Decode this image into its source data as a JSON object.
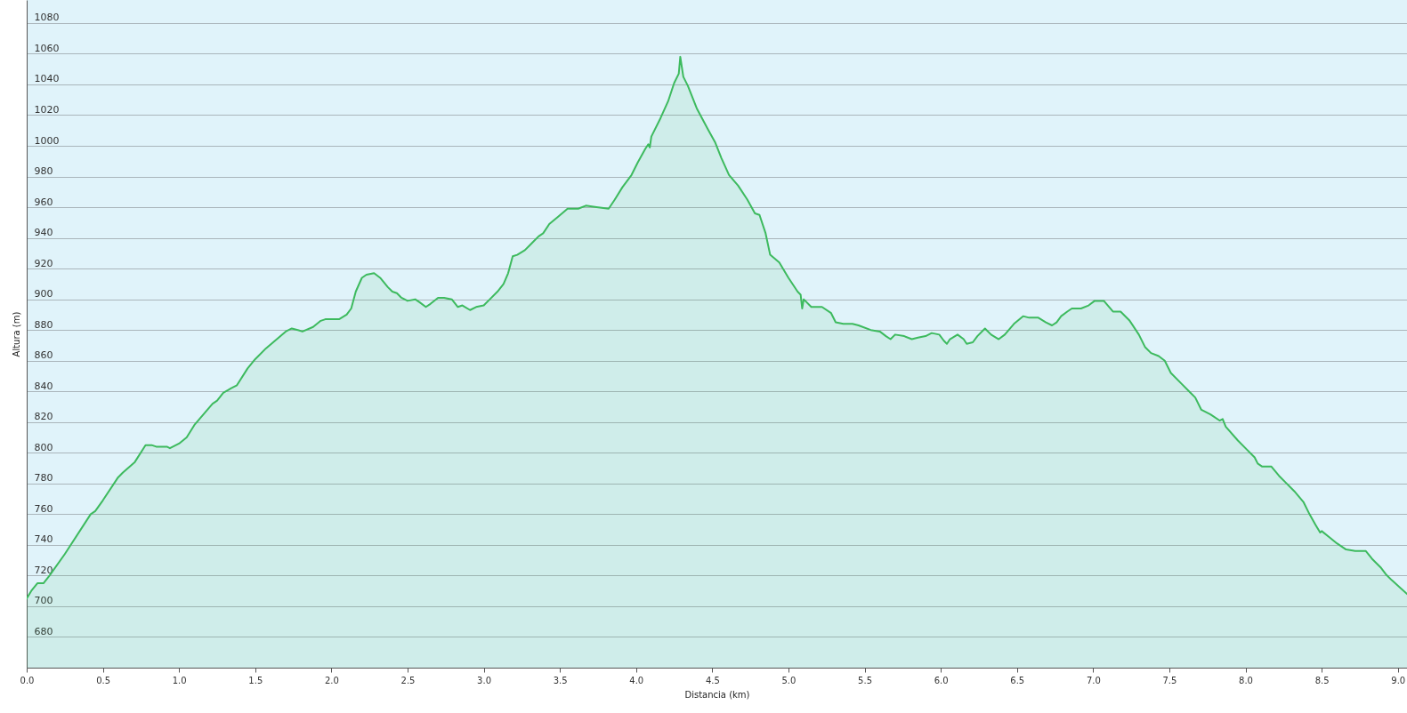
{
  "chart_data": {
    "type": "area",
    "xlabel": "Distancia  (km)",
    "ylabel": "Altura (m)",
    "x": [
      0,
      0.03,
      0.07,
      0.11,
      0.15,
      0.25,
      0.42,
      0.45,
      0.5,
      0.6,
      0.63,
      0.71,
      0.78,
      0.82,
      0.85,
      0.92,
      0.94,
      1.0,
      1.05,
      1.1,
      1.16,
      1.22,
      1.25,
      1.29,
      1.34,
      1.38,
      1.45,
      1.5,
      1.57,
      1.7,
      1.74,
      1.78,
      1.81,
      1.88,
      1.93,
      1.96,
      2.05,
      2.1,
      2.13,
      2.16,
      2.2,
      2.23,
      2.28,
      2.32,
      2.37,
      2.4,
      2.43,
      2.46,
      2.5,
      2.55,
      2.58,
      2.62,
      2.65,
      2.7,
      2.74,
      2.79,
      2.83,
      2.86,
      2.91,
      2.95,
      3.0,
      3.04,
      3.09,
      3.13,
      3.16,
      3.19,
      3.22,
      3.27,
      3.3,
      3.33,
      3.36,
      3.39,
      3.43,
      3.49,
      3.55,
      3.62,
      3.67,
      3.74,
      3.82,
      3.86,
      3.91,
      3.97,
      4.01,
      4.06,
      4.08,
      4.09,
      4.1,
      4.16,
      4.21,
      4.25,
      4.28,
      4.29,
      4.31,
      4.34,
      4.4,
      4.47,
      4.52,
      4.56,
      4.61,
      4.67,
      4.73,
      4.78,
      4.81,
      4.85,
      4.88,
      4.94,
      5.0,
      5.06,
      5.08,
      5.09,
      5.1,
      5.15,
      5.22,
      5.28,
      5.31,
      5.36,
      5.42,
      5.46,
      5.54,
      5.6,
      5.64,
      5.67,
      5.7,
      5.76,
      5.81,
      5.85,
      5.9,
      5.94,
      5.99,
      6.02,
      6.04,
      6.06,
      6.11,
      6.15,
      6.17,
      6.21,
      6.24,
      6.29,
      6.33,
      6.38,
      6.42,
      6.48,
      6.54,
      6.58,
      6.64,
      6.69,
      6.73,
      6.76,
      6.79,
      6.83,
      6.86,
      6.92,
      6.97,
      7.01,
      7.07,
      7.13,
      7.18,
      7.24,
      7.3,
      7.34,
      7.38,
      7.43,
      7.47,
      7.51,
      7.58,
      7.64,
      7.67,
      7.71,
      7.77,
      7.83,
      7.85,
      7.87,
      7.95,
      8.01,
      8.06,
      8.08,
      8.11,
      8.17,
      8.22,
      8.26,
      8.32,
      8.38,
      8.42,
      8.46,
      8.49,
      8.5,
      8.55,
      8.6,
      8.66,
      8.72,
      8.79,
      8.83,
      8.89,
      8.92,
      8.96,
      9.06
    ],
    "series": [
      {
        "color": "#3dba5e",
        "values": [
          705,
          710,
          715,
          715,
          720,
          734,
          760,
          762,
          769,
          784,
          787,
          794,
          805,
          805,
          804,
          804,
          803,
          806,
          810,
          818,
          825,
          832,
          834,
          839,
          842,
          844,
          855,
          861,
          868,
          879,
          881,
          880,
          879,
          882,
          886,
          887,
          887,
          890,
          894,
          905,
          914,
          916,
          917,
          914,
          908,
          905,
          904,
          901,
          899,
          900,
          898,
          895,
          897,
          901,
          901,
          900,
          895,
          896,
          893,
          895,
          896,
          900,
          905,
          910,
          917,
          928,
          929,
          932,
          935,
          938,
          941,
          943,
          949,
          954,
          959,
          959,
          961,
          960,
          959,
          965,
          973,
          981,
          989,
          998,
          1001,
          999,
          1006,
          1018,
          1029,
          1041,
          1047,
          1058,
          1045,
          1039,
          1024,
          1011,
          1002,
          992,
          981,
          974,
          965,
          956,
          955,
          943,
          929,
          924,
          914,
          905,
          903,
          894,
          900,
          895,
          895,
          891,
          885,
          884,
          884,
          883,
          880,
          879,
          876,
          874,
          877,
          876,
          874,
          875,
          876,
          878,
          877,
          873,
          871,
          874,
          877,
          874,
          871,
          872,
          876,
          881,
          877,
          874,
          877,
          884,
          889,
          888,
          888,
          885,
          883,
          885,
          889,
          892,
          894,
          894,
          896,
          899,
          899,
          892,
          892,
          886,
          877,
          869,
          865,
          863,
          860,
          852,
          845,
          839,
          836,
          828,
          825,
          821,
          822,
          817,
          808,
          802,
          797,
          793,
          791,
          791,
          785,
          781,
          775,
          768,
          760,
          753,
          748,
          749,
          745,
          741,
          737,
          736,
          736,
          731,
          725,
          721,
          717,
          708
        ]
      }
    ],
    "xlim": [
      0,
      9.06
    ],
    "ylim": [
      660,
      1095
    ],
    "xticks": [
      {
        "value": 0,
        "label": "0.0"
      },
      {
        "value": 0.5,
        "label": "0.5"
      },
      {
        "value": 1,
        "label": "1.0"
      },
      {
        "value": 1.5,
        "label": "1.5"
      },
      {
        "value": 2,
        "label": "2.0"
      },
      {
        "value": 2.5,
        "label": "2.5"
      },
      {
        "value": 3,
        "label": "3.0"
      },
      {
        "value": 3.5,
        "label": "3.5"
      },
      {
        "value": 4,
        "label": "4.0"
      },
      {
        "value": 4.5,
        "label": "4.5"
      },
      {
        "value": 5,
        "label": "5.0"
      },
      {
        "value": 5.5,
        "label": "5.5"
      },
      {
        "value": 6,
        "label": "6.0"
      },
      {
        "value": 6.5,
        "label": "6.5"
      },
      {
        "value": 7,
        "label": "7.0"
      },
      {
        "value": 7.5,
        "label": "7.5"
      },
      {
        "value": 8,
        "label": "8.0"
      },
      {
        "value": 8.5,
        "label": "8.5"
      },
      {
        "value": 9,
        "label": "9.0"
      }
    ],
    "yticks": [
      680,
      700,
      720,
      740,
      760,
      780,
      800,
      820,
      840,
      860,
      880,
      900,
      920,
      940,
      960,
      980,
      1000,
      1020,
      1040,
      1060,
      1080
    ],
    "grid": "y"
  }
}
